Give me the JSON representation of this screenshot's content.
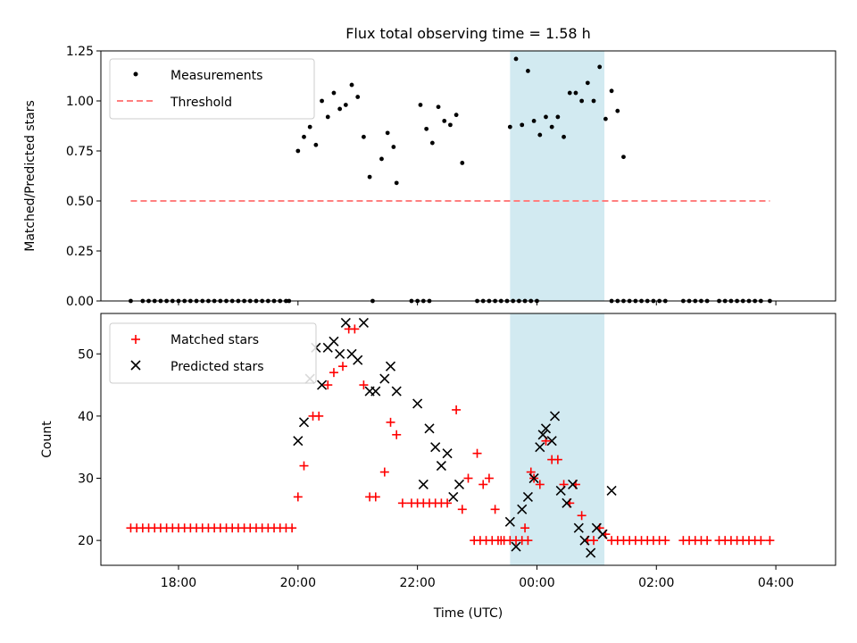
{
  "chart_data": [
    {
      "type": "scatter",
      "title": "Flux total observing time = 1.58 h",
      "xlabel": "",
      "ylabel": "Matched/Predicted stars",
      "xlim": [
        -7.3,
        5.0
      ],
      "ylim": [
        0.0,
        1.25
      ],
      "yticks": [
        0.0,
        0.25,
        0.5,
        0.75,
        1.0,
        1.25
      ],
      "ytick_labels": [
        "0.00",
        "0.25",
        "0.50",
        "0.75",
        "1.00",
        "1.25"
      ],
      "xticks": [
        -6,
        -4,
        -2,
        0,
        2,
        4
      ],
      "highlight_span": [
        -0.45,
        1.13
      ],
      "highlight_color": "#add8e6",
      "legend": {
        "position": "upper-left",
        "entries": [
          "Measurements",
          "Threshold"
        ]
      },
      "series": [
        {
          "name": "Measurements",
          "marker": "dot",
          "color": "#000000",
          "points": [
            [
              -6.8,
              0
            ],
            [
              -6.6,
              0
            ],
            [
              -6.5,
              0
            ],
            [
              -6.4,
              0
            ],
            [
              -6.3,
              0
            ],
            [
              -6.2,
              0
            ],
            [
              -6.1,
              0
            ],
            [
              -6.0,
              0
            ],
            [
              -5.9,
              0
            ],
            [
              -5.8,
              0
            ],
            [
              -5.7,
              0
            ],
            [
              -5.6,
              0
            ],
            [
              -5.5,
              0
            ],
            [
              -5.4,
              0
            ],
            [
              -5.3,
              0
            ],
            [
              -5.2,
              0
            ],
            [
              -5.1,
              0
            ],
            [
              -5.0,
              0
            ],
            [
              -4.9,
              0
            ],
            [
              -4.8,
              0
            ],
            [
              -4.7,
              0
            ],
            [
              -4.6,
              0
            ],
            [
              -4.5,
              0
            ],
            [
              -4.4,
              0
            ],
            [
              -4.3,
              0
            ],
            [
              -4.2,
              0
            ],
            [
              -4.15,
              0
            ],
            [
              -4.0,
              0.75
            ],
            [
              -3.9,
              0.82
            ],
            [
              -3.8,
              0.87
            ],
            [
              -3.7,
              0.78
            ],
            [
              -3.6,
              1.0
            ],
            [
              -3.5,
              0.92
            ],
            [
              -3.4,
              1.04
            ],
            [
              -3.3,
              0.96
            ],
            [
              -3.2,
              0.98
            ],
            [
              -3.1,
              1.08
            ],
            [
              -3.0,
              1.02
            ],
            [
              -2.9,
              0.82
            ],
            [
              -2.8,
              0.62
            ],
            [
              -2.6,
              0.71
            ],
            [
              -2.5,
              0.84
            ],
            [
              -2.4,
              0.77
            ],
            [
              -2.35,
              0.59
            ],
            [
              -2.75,
              0
            ],
            [
              -2.1,
              0
            ],
            [
              -2.0,
              0
            ],
            [
              -1.9,
              0
            ],
            [
              -1.8,
              0
            ],
            [
              -1.95,
              0.98
            ],
            [
              -1.85,
              0.86
            ],
            [
              -1.75,
              0.79
            ],
            [
              -1.65,
              0.97
            ],
            [
              -1.55,
              0.9
            ],
            [
              -1.45,
              0.88
            ],
            [
              -1.35,
              0.93
            ],
            [
              -1.25,
              0.69
            ],
            [
              -1.0,
              0
            ],
            [
              -0.9,
              0
            ],
            [
              -0.8,
              0
            ],
            [
              -0.7,
              0
            ],
            [
              -0.6,
              0
            ],
            [
              -0.5,
              0
            ],
            [
              -0.4,
              0
            ],
            [
              -0.3,
              0
            ],
            [
              -0.2,
              0
            ],
            [
              -0.1,
              0
            ],
            [
              0.0,
              0
            ],
            [
              -0.45,
              0.87
            ],
            [
              -0.35,
              1.21
            ],
            [
              -0.25,
              0.88
            ],
            [
              -0.15,
              1.15
            ],
            [
              -0.05,
              0.9
            ],
            [
              0.05,
              0.83
            ],
            [
              0.15,
              0.92
            ],
            [
              0.25,
              0.87
            ],
            [
              0.35,
              0.92
            ],
            [
              0.45,
              0.82
            ],
            [
              0.55,
              1.04
            ],
            [
              0.65,
              1.04
            ],
            [
              0.75,
              1.0
            ],
            [
              0.85,
              1.09
            ],
            [
              0.95,
              1.0
            ],
            [
              1.05,
              1.17
            ],
            [
              1.15,
              0.91
            ],
            [
              1.25,
              1.05
            ],
            [
              1.35,
              0.95
            ],
            [
              1.45,
              0.72
            ],
            [
              1.25,
              0
            ],
            [
              1.35,
              0
            ],
            [
              1.45,
              0
            ],
            [
              1.55,
              0
            ],
            [
              1.65,
              0
            ],
            [
              1.75,
              0
            ],
            [
              1.85,
              0
            ],
            [
              1.95,
              0
            ],
            [
              2.05,
              0
            ],
            [
              2.15,
              0
            ],
            [
              2.45,
              0
            ],
            [
              2.55,
              0
            ],
            [
              2.65,
              0
            ],
            [
              2.75,
              0
            ],
            [
              2.85,
              0
            ],
            [
              3.05,
              0
            ],
            [
              3.15,
              0
            ],
            [
              3.25,
              0
            ],
            [
              3.35,
              0
            ],
            [
              3.45,
              0
            ],
            [
              3.55,
              0
            ],
            [
              3.65,
              0
            ],
            [
              3.75,
              0
            ],
            [
              3.9,
              0
            ]
          ]
        },
        {
          "name": "Threshold",
          "marker": "dashed-line",
          "color": "#ff7f7f",
          "points": [
            [
              -6.8,
              0.5
            ],
            [
              3.9,
              0.5
            ]
          ]
        }
      ]
    },
    {
      "type": "scatter",
      "title": "",
      "xlabel": "Time (UTC)",
      "ylabel": "Count",
      "xlim": [
        -7.3,
        5.0
      ],
      "ylim": [
        16.0,
        56.5
      ],
      "yticks": [
        20,
        30,
        40,
        50
      ],
      "ytick_labels": [
        "20",
        "30",
        "40",
        "50"
      ],
      "xticks": [
        -6,
        -4,
        -2,
        0,
        2,
        4
      ],
      "xtick_labels": [
        "18:00",
        "20:00",
        "22:00",
        "00:00",
        "02:00",
        "04:00"
      ],
      "highlight_span": [
        -0.45,
        1.13
      ],
      "highlight_color": "#add8e6",
      "legend": {
        "position": "upper-left",
        "entries": [
          "Matched stars",
          "Predicted stars"
        ]
      },
      "series": [
        {
          "name": "Matched stars",
          "marker": "plus",
          "color": "#ff0000",
          "points": [
            [
              -6.8,
              22
            ],
            [
              -6.7,
              22
            ],
            [
              -6.6,
              22
            ],
            [
              -6.5,
              22
            ],
            [
              -6.4,
              22
            ],
            [
              -6.3,
              22
            ],
            [
              -6.2,
              22
            ],
            [
              -6.1,
              22
            ],
            [
              -6.0,
              22
            ],
            [
              -5.9,
              22
            ],
            [
              -5.8,
              22
            ],
            [
              -5.7,
              22
            ],
            [
              -5.6,
              22
            ],
            [
              -5.5,
              22
            ],
            [
              -5.4,
              22
            ],
            [
              -5.3,
              22
            ],
            [
              -5.2,
              22
            ],
            [
              -5.1,
              22
            ],
            [
              -5.0,
              22
            ],
            [
              -4.9,
              22
            ],
            [
              -4.8,
              22
            ],
            [
              -4.7,
              22
            ],
            [
              -4.6,
              22
            ],
            [
              -4.5,
              22
            ],
            [
              -4.4,
              22
            ],
            [
              -4.3,
              22
            ],
            [
              -4.2,
              22
            ],
            [
              -4.1,
              22
            ],
            [
              -4.0,
              27
            ],
            [
              -3.9,
              32
            ],
            [
              -3.75,
              40
            ],
            [
              -3.65,
              40
            ],
            [
              -3.5,
              45
            ],
            [
              -3.4,
              47
            ],
            [
              -3.25,
              48
            ],
            [
              -3.15,
              54
            ],
            [
              -3.05,
              54
            ],
            [
              -2.9,
              45
            ],
            [
              -2.8,
              27
            ],
            [
              -2.7,
              27
            ],
            [
              -2.55,
              31
            ],
            [
              -2.45,
              39
            ],
            [
              -2.35,
              37
            ],
            [
              -2.25,
              26
            ],
            [
              -2.1,
              26
            ],
            [
              -2.0,
              26
            ],
            [
              -1.9,
              26
            ],
            [
              -1.8,
              26
            ],
            [
              -1.7,
              26
            ],
            [
              -1.6,
              26
            ],
            [
              -1.5,
              26
            ],
            [
              -1.35,
              41
            ],
            [
              -1.25,
              25
            ],
            [
              -1.15,
              30
            ],
            [
              -1.0,
              34
            ],
            [
              -0.9,
              29
            ],
            [
              -0.8,
              30
            ],
            [
              -0.7,
              25
            ],
            [
              -0.6,
              20
            ],
            [
              -1.05,
              20
            ],
            [
              -0.95,
              20
            ],
            [
              -0.85,
              20
            ],
            [
              -0.75,
              20
            ],
            [
              -0.65,
              20
            ],
            [
              -0.55,
              20
            ],
            [
              -0.45,
              20
            ],
            [
              -0.35,
              20
            ],
            [
              -0.25,
              20
            ],
            [
              -0.2,
              22
            ],
            [
              -0.15,
              20
            ],
            [
              -0.1,
              31
            ],
            [
              -0.05,
              30
            ],
            [
              0.05,
              29
            ],
            [
              0.15,
              36
            ],
            [
              0.25,
              33
            ],
            [
              0.35,
              33
            ],
            [
              0.45,
              29
            ],
            [
              0.55,
              26
            ],
            [
              0.65,
              29
            ],
            [
              0.75,
              24
            ],
            [
              0.85,
              20
            ],
            [
              0.95,
              20
            ],
            [
              1.05,
              22
            ],
            [
              1.15,
              21
            ],
            [
              1.25,
              20
            ],
            [
              1.35,
              20
            ],
            [
              1.45,
              20
            ],
            [
              1.55,
              20
            ],
            [
              1.65,
              20
            ],
            [
              1.75,
              20
            ],
            [
              1.85,
              20
            ],
            [
              1.95,
              20
            ],
            [
              2.05,
              20
            ],
            [
              2.15,
              20
            ],
            [
              2.45,
              20
            ],
            [
              2.55,
              20
            ],
            [
              2.65,
              20
            ],
            [
              2.75,
              20
            ],
            [
              2.85,
              20
            ],
            [
              3.05,
              20
            ],
            [
              3.15,
              20
            ],
            [
              3.25,
              20
            ],
            [
              3.35,
              20
            ],
            [
              3.45,
              20
            ],
            [
              3.55,
              20
            ],
            [
              3.65,
              20
            ],
            [
              3.75,
              20
            ],
            [
              3.9,
              20
            ]
          ]
        },
        {
          "name": "Predicted stars",
          "marker": "x",
          "color": "#000000",
          "points": [
            [
              -4.0,
              36
            ],
            [
              -3.9,
              39
            ],
            [
              -3.8,
              46
            ],
            [
              -3.7,
              51
            ],
            [
              -3.6,
              45
            ],
            [
              -3.5,
              51
            ],
            [
              -3.4,
              52
            ],
            [
              -3.3,
              50
            ],
            [
              -3.2,
              55
            ],
            [
              -3.1,
              50
            ],
            [
              -3.0,
              49
            ],
            [
              -2.9,
              55
            ],
            [
              -2.8,
              44
            ],
            [
              -2.7,
              44
            ],
            [
              -2.55,
              46
            ],
            [
              -2.45,
              48
            ],
            [
              -2.35,
              44
            ],
            [
              -2.0,
              42
            ],
            [
              -1.9,
              29
            ],
            [
              -1.8,
              38
            ],
            [
              -1.7,
              35
            ],
            [
              -1.6,
              32
            ],
            [
              -1.5,
              34
            ],
            [
              -1.4,
              27
            ],
            [
              -1.3,
              29
            ],
            [
              -0.45,
              23
            ],
            [
              -0.35,
              19
            ],
            [
              -0.25,
              25
            ],
            [
              -0.15,
              27
            ],
            [
              -0.05,
              30
            ],
            [
              0.05,
              35
            ],
            [
              0.1,
              37
            ],
            [
              0.15,
              38
            ],
            [
              0.25,
              36
            ],
            [
              0.3,
              40
            ],
            [
              0.4,
              28
            ],
            [
              0.5,
              26
            ],
            [
              0.6,
              29
            ],
            [
              0.7,
              22
            ],
            [
              0.8,
              20
            ],
            [
              0.9,
              18
            ],
            [
              1.0,
              22
            ],
            [
              1.1,
              21
            ],
            [
              1.25,
              28
            ]
          ]
        }
      ]
    }
  ]
}
